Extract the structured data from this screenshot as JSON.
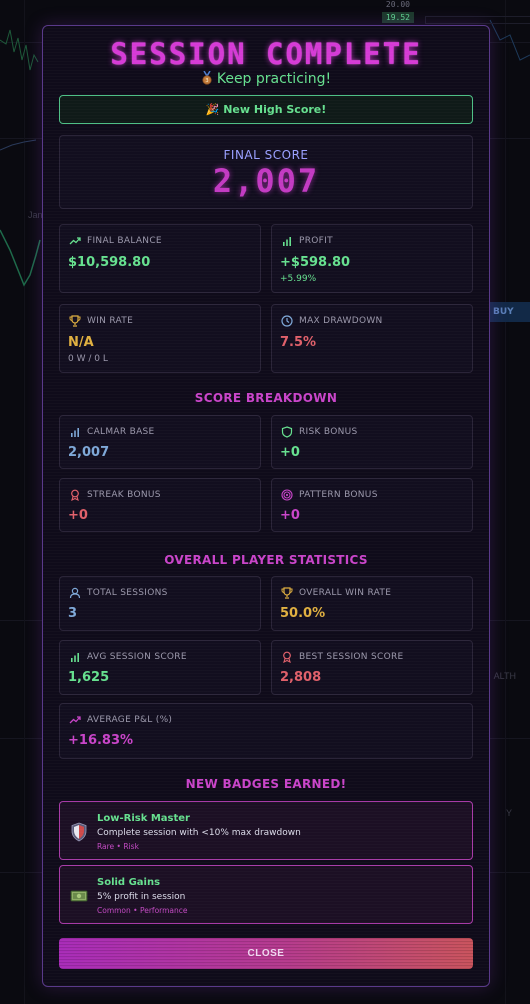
{
  "background": {
    "price_top": "20.00",
    "price_tag": "19.52",
    "axis_label": "Jan",
    "buy_label": "BUY",
    "health_label": "ALTH",
    "y_label": "Y"
  },
  "modal": {
    "title": "SESSION COMPLETE",
    "subtitle": "Keep practicing!",
    "subtitle_icon": "bronze-medal-icon",
    "high_score_banner": "🎉 New High Score!",
    "final_score": {
      "label": "FINAL SCORE",
      "value": "2,007"
    },
    "stats": {
      "final_balance": {
        "label": "FINAL BALANCE",
        "value": "$10,598.80",
        "icon": "trend-up-icon"
      },
      "profit": {
        "label": "PROFIT",
        "value": "+$598.80",
        "sub": "+5.99%",
        "icon": "bar-chart-icon"
      },
      "win_rate": {
        "label": "WIN RATE",
        "value": "N/A",
        "sub": "0 W / 0 L",
        "icon": "trophy-icon"
      },
      "max_drawdown": {
        "label": "MAX DRAWDOWN",
        "value": "7.5%",
        "icon": "clock-icon"
      }
    },
    "breakdown": {
      "heading": "SCORE BREAKDOWN",
      "calmar_base": {
        "label": "CALMAR BASE",
        "value": "2,007",
        "icon": "bar-chart-icon"
      },
      "risk_bonus": {
        "label": "RISK BONUS",
        "value": "+0",
        "icon": "shield-icon"
      },
      "streak_bonus": {
        "label": "STREAK BONUS",
        "value": "+0",
        "icon": "award-icon"
      },
      "pattern_bonus": {
        "label": "PATTERN BONUS",
        "value": "+0",
        "icon": "target-icon"
      }
    },
    "overall": {
      "heading": "OVERALL PLAYER STATISTICS",
      "total_sessions": {
        "label": "TOTAL SESSIONS",
        "value": "3",
        "icon": "user-icon"
      },
      "overall_win_rate": {
        "label": "OVERALL WIN RATE",
        "value": "50.0%",
        "icon": "trophy-icon"
      },
      "avg_session_score": {
        "label": "AVG SESSION SCORE",
        "value": "1,625",
        "icon": "bar-chart-icon"
      },
      "best_session_score": {
        "label": "BEST SESSION SCORE",
        "value": "2,808",
        "icon": "award-icon"
      },
      "average_pnl": {
        "label": "AVERAGE P&L (%)",
        "value": "+16.83%",
        "icon": "trend-up-icon"
      }
    },
    "badges": {
      "heading": "NEW BADGES EARNED!",
      "items": [
        {
          "name": "Low-Risk Master",
          "description": "Complete session with <10% max drawdown",
          "meta": "Rare • Risk",
          "icon": "shield-badge-icon"
        },
        {
          "name": "Solid Gains",
          "description": "5% profit in session",
          "meta": "Common • Performance",
          "icon": "money-icon"
        }
      ]
    },
    "close_label": "CLOSE"
  },
  "colors": {
    "accent": "#c944c9",
    "positive": "#66e08f",
    "negative": "#e0606a",
    "warning": "#e0b040",
    "info": "#7ea8d8"
  }
}
